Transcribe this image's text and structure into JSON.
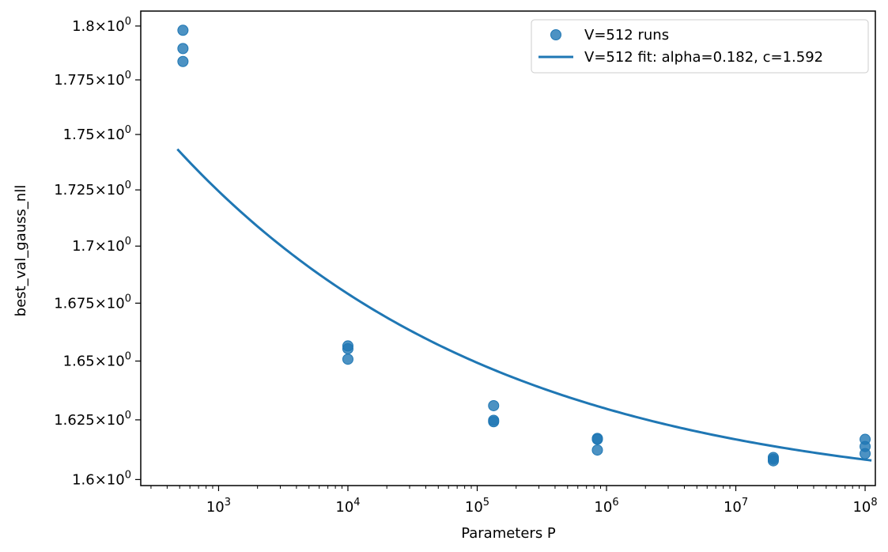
{
  "chart_data": {
    "type": "scatter",
    "xscale": "log",
    "yscale": "log",
    "xlabel": "Parameters P",
    "ylabel": "best_val_gauss_nll",
    "xlim": [
      250,
      120000000
    ],
    "ylim": [
      1.5975,
      1.807
    ],
    "x_major_ticks": [
      {
        "value": 1000,
        "base": "10",
        "exp": "3"
      },
      {
        "value": 10000,
        "base": "10",
        "exp": "4"
      },
      {
        "value": 100000,
        "base": "10",
        "exp": "5"
      },
      {
        "value": 1000000,
        "base": "10",
        "exp": "6"
      },
      {
        "value": 10000000,
        "base": "10",
        "exp": "7"
      },
      {
        "value": 100000000,
        "base": "10",
        "exp": "8"
      }
    ],
    "y_ticks": [
      {
        "value": 1.6,
        "mantissa": "1.6",
        "times": "×",
        "base": "10",
        "exp": "0"
      },
      {
        "value": 1.625,
        "mantissa": "1.625",
        "times": "×",
        "base": "10",
        "exp": "0"
      },
      {
        "value": 1.65,
        "mantissa": "1.65",
        "times": "×",
        "base": "10",
        "exp": "0"
      },
      {
        "value": 1.675,
        "mantissa": "1.675",
        "times": "×",
        "base": "10",
        "exp": "0"
      },
      {
        "value": 1.7,
        "mantissa": "1.7",
        "times": "×",
        "base": "10",
        "exp": "0"
      },
      {
        "value": 1.725,
        "mantissa": "1.725",
        "times": "×",
        "base": "10",
        "exp": "0"
      },
      {
        "value": 1.75,
        "mantissa": "1.75",
        "times": "×",
        "base": "10",
        "exp": "0"
      },
      {
        "value": 1.775,
        "mantissa": "1.775",
        "times": "×",
        "base": "10",
        "exp": "0"
      },
      {
        "value": 1.8,
        "mantissa": "1.8",
        "times": "×",
        "base": "10",
        "exp": "0"
      }
    ],
    "series": [
      {
        "name": "V=512 runs",
        "kind": "scatter",
        "color": "#1f77b4",
        "points": [
          {
            "x": 530,
            "y": 1.798
          },
          {
            "x": 530,
            "y": 1.7895
          },
          {
            "x": 530,
            "y": 1.7835
          },
          {
            "x": 10000,
            "y": 1.6565
          },
          {
            "x": 10000,
            "y": 1.6553
          },
          {
            "x": 10000,
            "y": 1.6508
          },
          {
            "x": 134000,
            "y": 1.631
          },
          {
            "x": 134000,
            "y": 1.6248
          },
          {
            "x": 134000,
            "y": 1.6242
          },
          {
            "x": 850000,
            "y": 1.6172
          },
          {
            "x": 850000,
            "y": 1.6168
          },
          {
            "x": 850000,
            "y": 1.6123
          },
          {
            "x": 19500000,
            "y": 1.6092
          },
          {
            "x": 19500000,
            "y": 1.6085
          },
          {
            "x": 19500000,
            "y": 1.6078
          },
          {
            "x": 100000000,
            "y": 1.6168
          },
          {
            "x": 100000000,
            "y": 1.6138
          },
          {
            "x": 100000000,
            "y": 1.6108
          }
        ]
      },
      {
        "name": "V=512 fit: alpha=0.182, c=1.592",
        "kind": "line",
        "color": "#1f77b4",
        "function": "power_law",
        "alpha": 0.182,
        "c": 1.592,
        "a": 0.4655,
        "x_range": [
          480,
          112000000
        ]
      }
    ],
    "legend": {
      "position": "top-right",
      "entries": [
        {
          "label": "V=512 runs",
          "marker": "circle"
        },
        {
          "label": "V=512 fit: alpha=0.182, c=1.592",
          "marker": "line"
        }
      ]
    }
  }
}
